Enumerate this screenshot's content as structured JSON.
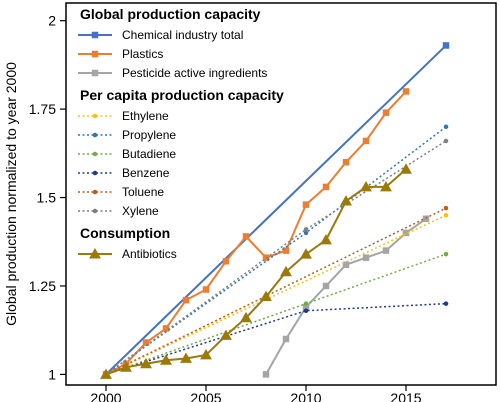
{
  "chart_data": {
    "type": "line",
    "xlabel": "",
    "ylabel": "Global production normalized to year 2000",
    "xlim": [
      1998,
      2019.5
    ],
    "ylim": [
      0.97,
      2.05
    ],
    "xticks": [
      "2000",
      "2005",
      "2010",
      "2015"
    ],
    "yticks": [
      "1",
      "1.25",
      "1.5",
      "1.75",
      "2"
    ],
    "grid": false,
    "legend_groups": [
      {
        "heading": "Global production capacity",
        "entries": [
          {
            "series": "Chemical industry total"
          },
          {
            "series": "Plastics"
          },
          {
            "series": "Pesticide active ingredients"
          }
        ]
      },
      {
        "heading": "Per capita production capacity",
        "entries": [
          {
            "series": "Ethylene"
          },
          {
            "series": "Propylene"
          },
          {
            "series": "Butadiene"
          },
          {
            "series": "Benzene"
          },
          {
            "series": "Toluene"
          },
          {
            "series": "Xylene"
          }
        ]
      },
      {
        "heading": "Consumption",
        "entries": [
          {
            "series": "Antibiotics"
          }
        ]
      }
    ],
    "series": [
      {
        "name": "Chemical industry total",
        "color": "#4472c4",
        "dash": "solid",
        "marker": "square",
        "markerAll": false,
        "x": [
          2000,
          2017
        ],
        "y": [
          1.0,
          1.93
        ]
      },
      {
        "name": "Plastics",
        "color": "#ed7d31",
        "dash": "solid",
        "marker": "square",
        "markerAll": true,
        "x": [
          2000,
          2001,
          2002,
          2003,
          2004,
          2005,
          2006,
          2007,
          2008,
          2009,
          2010,
          2011,
          2012,
          2013,
          2014,
          2015
        ],
        "y": [
          1.0,
          1.03,
          1.09,
          1.13,
          1.21,
          1.24,
          1.32,
          1.39,
          1.33,
          1.35,
          1.48,
          1.53,
          1.6,
          1.66,
          1.74,
          1.8
        ]
      },
      {
        "name": "Pesticide active ingredients",
        "color": "#a5a5a5",
        "dash": "solid",
        "marker": "square",
        "markerAll": true,
        "x": [
          2008,
          2009,
          2010,
          2011,
          2012,
          2013,
          2014,
          2015,
          2016
        ],
        "y": [
          1.0,
          1.1,
          1.19,
          1.25,
          1.31,
          1.33,
          1.35,
          1.4,
          1.44
        ]
      },
      {
        "name": "Ethylene",
        "color": "#ffc000",
        "dash": "dot",
        "marker": "circle",
        "markerAll": false,
        "x": [
          2000,
          2017
        ],
        "y": [
          1.0,
          1.45
        ]
      },
      {
        "name": "Propylene",
        "color": "#2e75b6",
        "dash": "dot",
        "marker": "circle",
        "markerAll": false,
        "x": [
          2000,
          2010,
          2017
        ],
        "y": [
          1.0,
          1.4,
          1.7
        ]
      },
      {
        "name": "Butadiene",
        "color": "#70ad47",
        "dash": "dot",
        "marker": "circle",
        "markerAll": false,
        "x": [
          2000,
          2010,
          2017
        ],
        "y": [
          1.0,
          1.2,
          1.34
        ]
      },
      {
        "name": "Benzene",
        "color": "#1f3a93",
        "dash": "dot",
        "marker": "circle",
        "markerAll": false,
        "x": [
          2000,
          2010,
          2017
        ],
        "y": [
          1.0,
          1.18,
          1.2
        ]
      },
      {
        "name": "Toluene",
        "color": "#c55a11",
        "dash": "dot",
        "marker": "circle",
        "markerAll": false,
        "x": [
          2000,
          2017
        ],
        "y": [
          1.0,
          1.47
        ]
      },
      {
        "name": "Xylene",
        "color": "#7f7f7f",
        "dash": "dot",
        "marker": "circle",
        "markerAll": false,
        "x": [
          2000,
          2010,
          2017
        ],
        "y": [
          1.0,
          1.41,
          1.66
        ]
      },
      {
        "name": "Antibiotics",
        "color": "#9c7a0a",
        "dash": "solid",
        "marker": "triangle",
        "markerAll": true,
        "x": [
          2000,
          2001,
          2002,
          2003,
          2004,
          2005,
          2006,
          2007,
          2008,
          2009,
          2010,
          2011,
          2012,
          2013,
          2014,
          2015
        ],
        "y": [
          1.0,
          1.02,
          1.03,
          1.04,
          1.045,
          1.055,
          1.11,
          1.16,
          1.22,
          1.29,
          1.34,
          1.38,
          1.49,
          1.53,
          1.53,
          1.58
        ]
      }
    ]
  }
}
